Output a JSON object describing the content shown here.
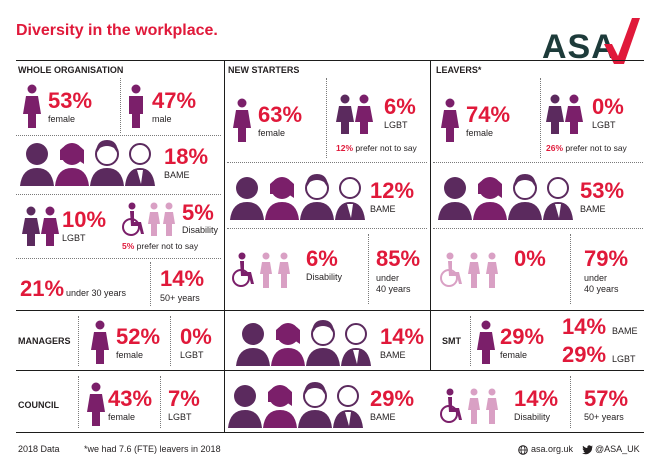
{
  "title": "Diversity in the workplace.",
  "logo": "ASA",
  "colors": {
    "red": "#e0193a",
    "purple": "#7b1f6a",
    "deep_purple": "#5b2a5e",
    "pink": "#d9a0c4",
    "dark": "#1d1d1b"
  },
  "whole": {
    "heading": "WHOLE ORGANISATION",
    "female_pct": "53%",
    "female_label": "female",
    "male_pct": "47%",
    "male_label": "male",
    "bame_pct": "18%",
    "bame_label": "BAME",
    "lgbt_pct": "10%",
    "lgbt_label": "LGBT",
    "dis_pct": "5%",
    "dis_label": "Disability",
    "dis_note_pct": "5%",
    "dis_note_text": "prefer not to say",
    "u30_pct": "21%",
    "u30_label": "under 30 years",
    "o50_pct": "14%",
    "o50_label": "50+ years"
  },
  "starters": {
    "heading": "NEW STARTERS",
    "female_pct": "63%",
    "female_label": "female",
    "lgbt_pct": "6%",
    "lgbt_label": "LGBT",
    "note_pct": "12%",
    "note_text": "prefer not to say",
    "bame_pct": "12%",
    "bame_label": "BAME",
    "dis_pct": "6%",
    "dis_label": "Disability",
    "u40_pct": "85%",
    "u40_label_1": "under",
    "u40_label_2": "40 years"
  },
  "leavers": {
    "heading": "LEAVERS*",
    "female_pct": "74%",
    "female_label": "female",
    "lgbt_pct": "0%",
    "lgbt_label": "LGBT",
    "note_pct": "26%",
    "note_text": "prefer not to say",
    "bame_pct": "53%",
    "bame_label": "BAME",
    "dis_pct": "0%",
    "u40_pct": "79%",
    "u40_label_1": "under",
    "u40_label_2": "40 years"
  },
  "managers": {
    "heading": "MANAGERS",
    "female_pct": "52%",
    "female_label": "female",
    "lgbt_pct": "0%",
    "lgbt_label": "LGBT",
    "bame_pct": "14%",
    "bame_label": "BAME"
  },
  "smt": {
    "heading": "SMT",
    "female_pct": "29%",
    "female_label": "female",
    "bame_pct": "14%",
    "bame_label": "BAME",
    "lgbt_pct": "29%",
    "lgbt_label": "LGBT"
  },
  "council": {
    "heading": "COUNCIL",
    "female_pct": "43%",
    "female_label": "female",
    "lgbt_pct": "7%",
    "lgbt_label": "LGBT",
    "bame_pct": "29%",
    "bame_label": "BAME",
    "dis_pct": "14%",
    "dis_label": "Disability",
    "o50_pct": "57%",
    "o50_label": "50+ years"
  },
  "footer": {
    "data": "2018 Data",
    "note": "*we had 7.6 (FTE) leavers in 2018",
    "web": "asa.org.uk",
    "twitter": "@ASA_UK"
  }
}
